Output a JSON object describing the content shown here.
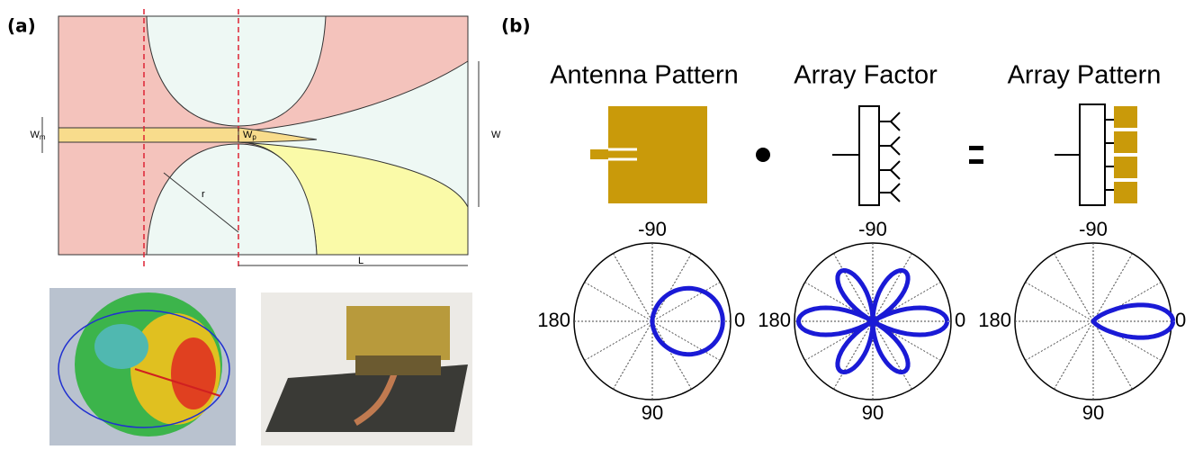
{
  "panel_a": {
    "label": "(a)",
    "dimensions": {
      "wm": [
        "W",
        "m"
      ],
      "wp": [
        "W",
        "p"
      ],
      "w": "W",
      "r": "r",
      "l": "L"
    }
  },
  "panel_b": {
    "label": "(b)",
    "columns": [
      {
        "title": "Antenna Pattern",
        "angles": {
          "top": "-90",
          "left": "180",
          "right": "0",
          "bottom": "90"
        }
      },
      {
        "title": "Array Factor",
        "angles": {
          "top": "-90",
          "left": "180",
          "right": "0",
          "bottom": "90"
        }
      },
      {
        "title": "Array Pattern",
        "angles": {
          "top": "-90",
          "left": "180",
          "right": "0",
          "bottom": "90"
        }
      }
    ]
  }
}
